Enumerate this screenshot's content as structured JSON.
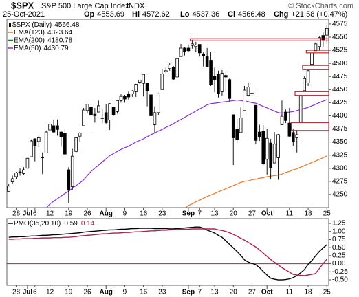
{
  "header": {
    "symbol": "$SPX",
    "name": "S&P 500 Large Cap Index",
    "exchange": "INDX",
    "date": "25-Oct-2021",
    "quote": [
      [
        "Op",
        "4553.69"
      ],
      [
        "Hi",
        "4572.62"
      ],
      [
        "Lo",
        "4537.36"
      ],
      [
        "Cl",
        "4566.48"
      ],
      [
        "Chg",
        "+21.58 (+0.47%)"
      ]
    ],
    "watermark": "© StockCharts.com"
  },
  "chart_data": [
    {
      "type": "candlestick",
      "legend_label": "$SPX (Daily)",
      "legend_value": 4566.48,
      "candle_color": "#000000",
      "categories": [
        null,
        null,
        "28",
        null,
        null,
        "Jul",
        null,
        "6",
        null,
        null,
        null,
        "12",
        null,
        null,
        null,
        null,
        "19",
        null,
        null,
        null,
        null,
        "26",
        null,
        null,
        null,
        null,
        "Aug",
        null,
        null,
        null,
        null,
        "9",
        null,
        null,
        null,
        null,
        "16",
        null,
        null,
        null,
        null,
        "23",
        null,
        null,
        null,
        null,
        null,
        null,
        "Sep",
        null,
        null,
        "7",
        null,
        null,
        null,
        "13",
        null,
        null,
        null,
        null,
        "20",
        null,
        null,
        null,
        null,
        "27",
        null,
        null,
        null,
        "Oct",
        null,
        null,
        null,
        null,
        null,
        "11",
        null,
        null,
        null,
        null,
        "18",
        null,
        null,
        null,
        null,
        "25"
      ],
      "candles": [
        [
          4256,
          4271,
          4256,
          4266
        ],
        [
          4274,
          4286,
          4271,
          4280
        ],
        [
          4284,
          4293,
          4280,
          4291
        ],
        [
          4293,
          4300,
          4286,
          4291
        ],
        [
          4290,
          4302,
          4287,
          4297
        ],
        [
          4300,
          4320,
          4300,
          4319
        ],
        [
          4322,
          4355,
          4322,
          4352
        ],
        [
          4356,
          4357,
          4313,
          4343
        ],
        [
          4351,
          4362,
          4340,
          4358
        ],
        [
          4321,
          4330,
          4289,
          4320
        ],
        [
          4329,
          4372,
          4329,
          4369
        ],
        [
          4373,
          4387,
          4367,
          4384
        ],
        [
          4381,
          4393,
          4368,
          4369
        ],
        [
          4381,
          4393,
          4362,
          4374
        ],
        [
          4369,
          4370,
          4341,
          4360
        ],
        [
          4367,
          4376,
          4325,
          4327
        ],
        [
          4297,
          4302,
          4233,
          4258
        ],
        [
          4265,
          4337,
          4259,
          4323
        ],
        [
          4332,
          4359,
          4330,
          4358
        ],
        [
          4361,
          4369,
          4351,
          4367
        ],
        [
          4381,
          4415,
          4381,
          4411
        ],
        [
          4410,
          4423,
          4405,
          4422
        ],
        [
          4417,
          4417,
          4367,
          4401
        ],
        [
          4403,
          4415,
          4387,
          4400
        ],
        [
          4407,
          4429,
          4407,
          4419
        ],
        [
          4396,
          4412,
          4386,
          4395
        ],
        [
          4406,
          4422,
          4385,
          4387
        ],
        [
          4392,
          4424,
          4373,
          4423
        ],
        [
          4416,
          4416,
          4400,
          4402
        ],
        [
          4408,
          4430,
          4404,
          4429
        ],
        [
          4429,
          4441,
          4425,
          4437
        ],
        [
          4437,
          4440,
          4425,
          4432
        ],
        [
          4442,
          4446,
          4431,
          4436
        ],
        [
          4442,
          4449,
          4436,
          4447
        ],
        [
          4446,
          4461,
          4436,
          4460
        ],
        [
          4464,
          4469,
          4461,
          4468
        ],
        [
          4462,
          4480,
          4437,
          4479
        ],
        [
          4462,
          4462,
          4418,
          4448
        ],
        [
          4440,
          4455,
          4400,
          4400
        ],
        [
          4383,
          4418,
          4368,
          4406
        ],
        [
          4406,
          4443,
          4402,
          4442
        ],
        [
          4450,
          4489,
          4450,
          4480
        ],
        [
          4484,
          4492,
          4482,
          4486
        ],
        [
          4490,
          4501,
          4486,
          4497
        ],
        [
          4493,
          4495,
          4468,
          4470
        ],
        [
          4474,
          4513,
          4474,
          4509
        ],
        [
          4513,
          4537,
          4513,
          4529
        ],
        [
          4529,
          4531,
          4515,
          4523
        ],
        [
          4529,
          4536,
          4522,
          4524
        ],
        [
          4534,
          4545,
          4528,
          4537
        ],
        [
          4532,
          4541,
          4521,
          4535
        ],
        [
          4536,
          4536,
          4513,
          4520
        ],
        [
          4518,
          4521,
          4494,
          4514
        ],
        [
          4514,
          4529,
          4493,
          4493
        ],
        [
          4506,
          4521,
          4457,
          4459
        ],
        [
          4475,
          4492,
          4445,
          4469
        ],
        [
          4480,
          4486,
          4435,
          4443
        ],
        [
          4446,
          4487,
          4438,
          4481
        ],
        [
          4477,
          4485,
          4447,
          4474
        ],
        [
          4469,
          4471,
          4427,
          4433
        ],
        [
          4402,
          4402,
          4306,
          4358
        ],
        [
          4375,
          4394,
          4348,
          4354
        ],
        [
          4368,
          4416,
          4368,
          4396
        ],
        [
          4410,
          4457,
          4410,
          4449
        ],
        [
          4439,
          4464,
          4437,
          4455
        ],
        [
          4443,
          4457,
          4437,
          4443
        ],
        [
          4420,
          4420,
          4346,
          4353
        ],
        [
          4369,
          4383,
          4352,
          4360
        ],
        [
          4371,
          4382,
          4306,
          4308
        ],
        [
          4317,
          4375,
          4288,
          4357
        ],
        [
          4348,
          4356,
          4279,
          4301
        ],
        [
          4310,
          4369,
          4310,
          4346
        ],
        [
          4320,
          4365,
          4278,
          4364
        ],
        [
          4383,
          4429,
          4383,
          4399
        ],
        [
          4407,
          4412,
          4386,
          4391
        ],
        [
          4386,
          4415,
          4360,
          4361
        ],
        [
          4368,
          4374,
          4343,
          4351
        ],
        [
          4358,
          4373,
          4330,
          4364
        ],
        [
          4387,
          4440,
          4387,
          4438
        ],
        [
          4448,
          4475,
          4448,
          4471
        ],
        [
          4463,
          4488,
          4457,
          4486
        ],
        [
          4498,
          4520,
          4496,
          4520
        ],
        [
          4524,
          4540,
          4524,
          4537
        ],
        [
          4532,
          4551,
          4524,
          4549
        ],
        [
          4553,
          4559,
          4531,
          4545
        ],
        [
          4553.69,
          4572.62,
          4537.36,
          4566.48
        ]
      ],
      "series": [
        {
          "name": "EMA(123)",
          "color": "#f07820",
          "last": 4323.64,
          "values": [
            null,
            null,
            null,
            null,
            null,
            null,
            null,
            null,
            null,
            null,
            null,
            null,
            null,
            null,
            null,
            null,
            null,
            null,
            null,
            null,
            null,
            null,
            null,
            null,
            null,
            null,
            null,
            null,
            null,
            null,
            null,
            null,
            null,
            null,
            null,
            null,
            null,
            null,
            null,
            null,
            null,
            null,
            null,
            null,
            null,
            null,
            null,
            4224,
            4229,
            4232,
            4236,
            4239,
            4243,
            4246,
            4249,
            4252,
            4255,
            4258,
            4261,
            4264,
            4267,
            4270,
            4273,
            4275,
            4276,
            4278,
            4279,
            4281,
            4282,
            4284,
            4285,
            4286,
            4287,
            4289,
            4292,
            4294,
            4297,
            4299,
            4302,
            4305,
            4308,
            4311,
            4314,
            4317,
            4320,
            4323.64
          ]
        },
        {
          "name": "EMA(200)",
          "color": "#1a7a1a",
          "last": 4180.78
        },
        {
          "name": "EMA(50)",
          "color": "#8a2be2",
          "last": 4430.79,
          "values": [
            null,
            null,
            null,
            null,
            null,
            null,
            null,
            null,
            null,
            null,
            4224,
            4232,
            4237,
            4242,
            4247,
            4252,
            4256,
            4262,
            4267,
            4272,
            4278,
            4286,
            4294,
            4300,
            4306,
            4312,
            4318,
            4324,
            4328,
            4332,
            4336,
            4339,
            4342,
            4346,
            4350,
            4353,
            4356,
            4360,
            4364,
            4367,
            4371,
            4374,
            4378,
            4381,
            4385,
            4389,
            4393,
            4397,
            4401,
            4405,
            4409,
            4413,
            4417,
            4421,
            4423,
            4424,
            4425,
            4426,
            4427,
            4428,
            4429,
            4430,
            4429,
            4428,
            4427,
            4425,
            4424,
            4421,
            4418,
            4415,
            4412,
            4409,
            4406,
            4405,
            4406,
            4407,
            4408,
            4410,
            4412,
            4414,
            4416,
            4419,
            4422,
            4425,
            4428,
            4430.79
          ]
        }
      ],
      "zones": [
        {
          "start": 49,
          "end": 85,
          "low": 4543,
          "high": 4547
        },
        {
          "start": 80,
          "end": 85,
          "low": 4520,
          "high": 4525
        },
        {
          "start": 79,
          "end": 85,
          "low": 4488,
          "high": 4496
        },
        {
          "start": 77,
          "end": 85,
          "low": 4439,
          "high": 4446
        },
        {
          "start": 76,
          "end": 85,
          "low": 4372,
          "high": 4387
        }
      ],
      "zone_color": "#cc2030",
      "ylim": [
        4225,
        4584
      ],
      "yticks": [
        4250,
        4275,
        4300,
        4325,
        4350,
        4375,
        4400,
        4425,
        4450,
        4475,
        4500,
        4525,
        4550,
        4575
      ]
    },
    {
      "type": "line",
      "categories": [
        null,
        null,
        "28",
        null,
        null,
        "Jul",
        null,
        "6",
        null,
        null,
        null,
        "12",
        null,
        null,
        null,
        null,
        "19",
        null,
        null,
        null,
        null,
        "26",
        null,
        null,
        null,
        null,
        "Aug",
        null,
        null,
        null,
        null,
        "9",
        null,
        null,
        null,
        null,
        "16",
        null,
        null,
        null,
        null,
        "23",
        null,
        null,
        null,
        null,
        null,
        null,
        "Sep",
        null,
        null,
        "7",
        null,
        null,
        null,
        "13",
        null,
        null,
        null,
        null,
        "20",
        null,
        null,
        null,
        null,
        "27",
        null,
        null,
        null,
        "Oct",
        null,
        null,
        null,
        null,
        null,
        "11",
        null,
        null,
        null,
        null,
        "18",
        null,
        null,
        null,
        null,
        "25"
      ],
      "series": [
        {
          "name": "PMO(35,20,10)",
          "color": "#000000",
          "last": 0.59,
          "values": [
            0.82,
            0.83,
            0.83,
            0.84,
            0.84,
            0.85,
            0.86,
            0.86,
            0.87,
            0.88,
            0.88,
            0.89,
            0.9,
            0.9,
            0.91,
            0.92,
            0.93,
            0.94,
            0.95,
            0.96,
            0.98,
            0.99,
            1,
            1.01,
            1.02,
            1.03,
            1.04,
            1.05,
            1.05,
            1.06,
            1.07,
            1.07,
            1.08,
            1.09,
            1.09,
            1.1,
            1.1,
            1.1,
            1.1,
            1.09,
            1.09,
            1.09,
            1.09,
            1.08,
            1.08,
            1.09,
            1.1,
            1.11,
            1.12,
            1.13,
            1.14,
            1.14,
            1.1,
            1.04,
            1,
            0.95,
            0.88,
            0.82,
            0.71,
            0.6,
            0.49,
            0.38,
            0.26,
            0.12,
            0.05,
            0.01,
            -0.03,
            -0.12,
            -0.24,
            -0.35,
            -0.45,
            -0.48,
            -0.5,
            -0.5,
            -0.49,
            -0.47,
            -0.43,
            -0.37,
            -0.28,
            -0.18,
            -0.02,
            0.1,
            0.25,
            0.38,
            0.49,
            0.59
          ]
        },
        {
          "color": "#b0204a",
          "last": 0.14,
          "values": [
            0.76,
            0.76,
            0.77,
            0.77,
            0.78,
            0.78,
            0.78,
            0.79,
            0.79,
            0.8,
            0.8,
            0.8,
            0.81,
            0.81,
            0.81,
            0.82,
            0.82,
            0.83,
            0.84,
            0.86,
            0.87,
            0.88,
            0.89,
            0.9,
            0.91,
            0.93,
            0.93,
            0.94,
            0.95,
            0.95,
            0.96,
            0.97,
            0.97,
            0.98,
            0.99,
            0.99,
            1,
            1.01,
            1.02,
            1.02,
            1.03,
            1.04,
            1.04,
            1.05,
            1.06,
            1.06,
            1.07,
            1.07,
            1.07,
            1.08,
            1.08,
            1.08,
            1.08,
            1.08,
            1.08,
            1.08,
            1.05,
            1.03,
            1,
            0.96,
            0.91,
            0.85,
            0.79,
            0.73,
            0.66,
            0.59,
            0.52,
            0.43,
            0.33,
            0.23,
            0.13,
            0.05,
            -0.04,
            -0.12,
            -0.19,
            -0.26,
            -0.33,
            -0.35,
            -0.36,
            -0.37,
            -0.35,
            -0.33,
            -0.3,
            -0.15,
            0,
            0.14
          ]
        }
      ],
      "hline": 0,
      "hline_color": "#b0204a",
      "ylim": [
        -0.67,
        1.4
      ],
      "yticks": [
        1.25,
        {
          "value": 1,
          "label": "1.00"
        },
        0.75,
        {
          "value": 0.5,
          "label": "0.50"
        },
        0.25,
        {
          "value": 0,
          "label": "0.00"
        },
        -0.25,
        {
          "value": -0.5,
          "label": "-0.50"
        }
      ]
    }
  ]
}
